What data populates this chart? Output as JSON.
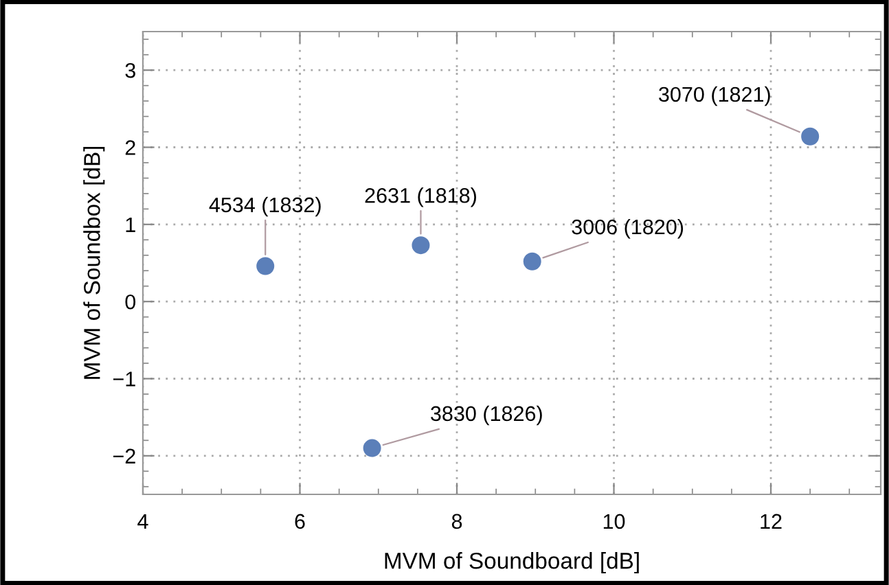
{
  "chart_data": {
    "type": "scatter",
    "xlabel": "MVM of Soundboard [dB]",
    "ylabel": "MVM of Soundbox [dB]",
    "x": [
      5.56,
      7.54,
      8.96,
      12.5,
      6.92
    ],
    "series": [
      {
        "color": "#5b7fb9",
        "values": [
          0.46,
          0.73,
          0.52,
          2.14,
          -1.9
        ]
      }
    ],
    "annotations": [
      {
        "text": "4534 (1832)",
        "x": 5.56,
        "y": 0.46
      },
      {
        "text": "2631 (1818)",
        "x": 7.54,
        "y": 0.73
      },
      {
        "text": "3006 (1820)",
        "x": 8.96,
        "y": 0.52
      },
      {
        "text": "3070 (1821)",
        "x": 12.5,
        "y": 2.14
      },
      {
        "text": "3830 (1826)",
        "x": 6.92,
        "y": -1.9
      }
    ],
    "xlim": [
      4,
      13.4
    ],
    "ylim": [
      -2.5,
      3.5
    ],
    "xticks": [
      4,
      6,
      8,
      10,
      12
    ],
    "yticks": [
      {
        "value": -2,
        "label": "−2"
      },
      {
        "value": -1,
        "label": "−1"
      },
      0,
      1,
      2,
      3
    ],
    "grid": true,
    "marker": "circle",
    "legend": false
  }
}
